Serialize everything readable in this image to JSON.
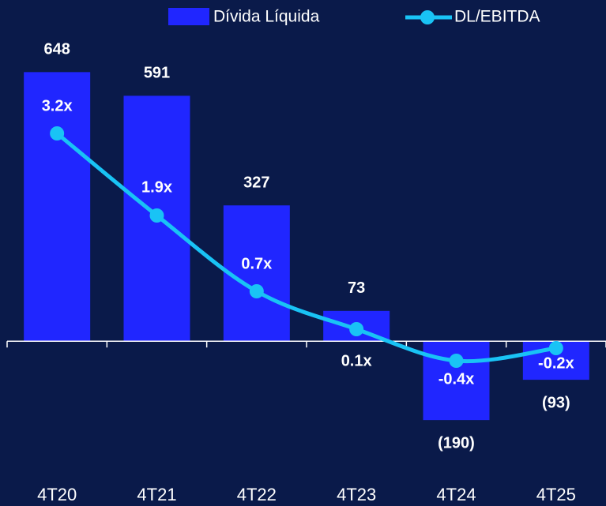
{
  "chart_data": {
    "type": "bar-line",
    "categories": [
      "4T20",
      "4T21",
      "4T22",
      "4T23",
      "4T24",
      "4T25"
    ],
    "series": [
      {
        "name": "Dívida Líquida",
        "type": "bar",
        "color": "#2026ff",
        "values": [
          648,
          591,
          327,
          73,
          -190,
          -93
        ],
        "value_labels": [
          "648",
          "591",
          "327",
          "73",
          "(190)",
          "(93)"
        ]
      },
      {
        "name": "DL/EBITDA",
        "type": "line",
        "axis": "y2",
        "color": "#19c3f5",
        "values": [
          3.2,
          1.9,
          0.7,
          0.1,
          -0.4,
          -0.2
        ],
        "value_labels": [
          "3.2x",
          "1.9x",
          "0.7x",
          "0.1x",
          "-0.4x",
          "-0.2x"
        ]
      }
    ],
    "ylim": [
      -300,
      700
    ],
    "y2lim": [
      -2.0625,
      4.5125
    ],
    "grid": false
  }
}
